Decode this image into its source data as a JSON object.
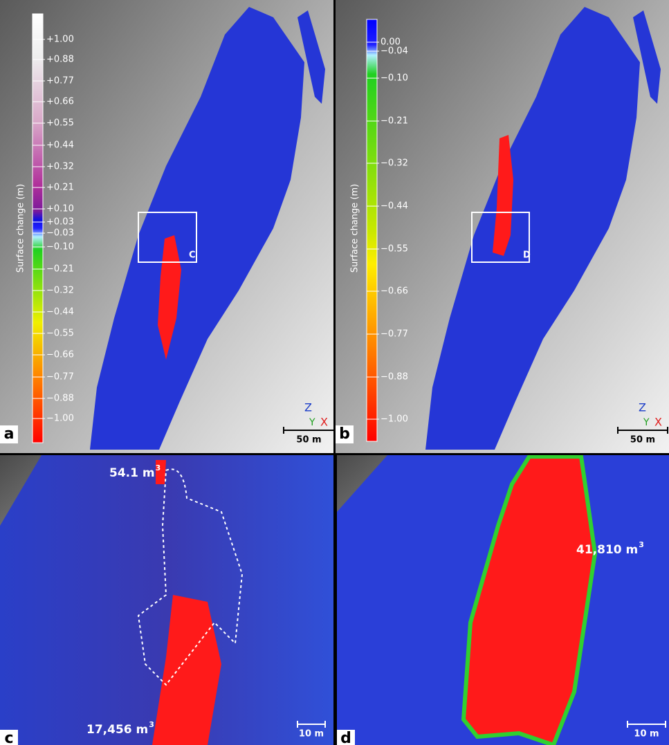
{
  "panels": [
    {
      "label": "a",
      "colorbar": {
        "title": "Surface change (m)",
        "ticks": [
          "+1.00",
          "+0.88",
          "+0.77",
          "+0.66",
          "+0.55",
          "+0.44",
          "+0.32",
          "+0.21",
          "+0.10",
          "+0.03",
          "−0.03",
          "−0.10",
          "−0.21",
          "−0.32",
          "−0.44",
          "−0.55",
          "−0.66",
          "−0.77",
          "−0.88",
          "−1.00"
        ]
      },
      "box_label": "C",
      "axes": {
        "z": "Z",
        "y": "Y",
        "x": "X"
      },
      "scale_bar": "50 m"
    },
    {
      "label": "b",
      "colorbar": {
        "title": "Surface change (m)",
        "ticks": [
          "0.00",
          "−0.04",
          "−0.10",
          "−0.21",
          "−0.32",
          "−0.44",
          "−0.55",
          "−0.66",
          "−0.77",
          "−0.88",
          "−1.00"
        ]
      },
      "box_label": "D",
      "axes": {
        "z": "Z",
        "y": "Y",
        "x": "X"
      },
      "scale_bar": "50 m"
    },
    {
      "label": "c",
      "annotations": [
        {
          "text": "54.1 m",
          "sup": "3"
        },
        {
          "text": "17,456 m",
          "sup": "3"
        }
      ],
      "scale_bar": "10 m"
    },
    {
      "label": "d",
      "annotations": [
        {
          "text": "41,810 m",
          "sup": "3"
        }
      ],
      "scale_bar": "10 m"
    }
  ]
}
